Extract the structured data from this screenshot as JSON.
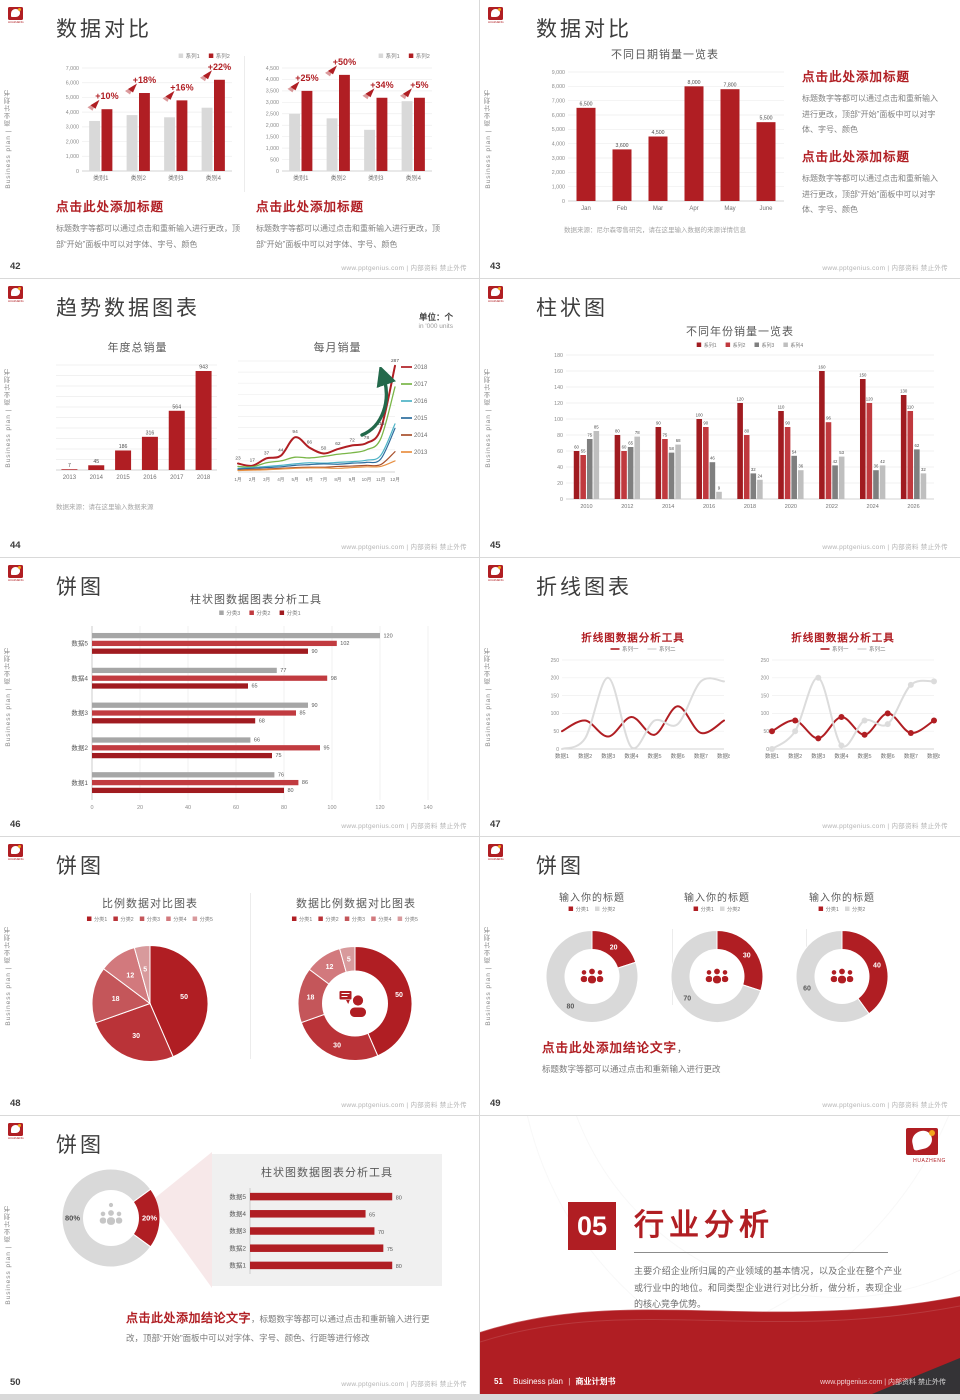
{
  "common": {
    "sidebar_text": "Business plan | 商业计划书",
    "footer_right": "www.pptgenius.com | 内部资料 禁止外传",
    "brand": {
      "logo_text": "HUAZHENG",
      "accent": "#b01e23"
    }
  },
  "slides": {
    "s42": {
      "page": "42",
      "title": "数据对比",
      "blocks": [
        {
          "heading": "点击此处添加标题",
          "body": "标题数字等都可以通过点击和重新输入进行更改，顶部“开始”面板中可以对字体、字号、颜色"
        },
        {
          "heading": "点击此处添加标题",
          "body": "标题数字等都可以通过点击和重新输入进行更改，顶部“开始”面板中可以对字体、字号、颜色"
        }
      ]
    },
    "s43": {
      "page": "43",
      "title": "数据对比",
      "source": "数据来源：尼尔森零售研究，请在这里输入数据的来源详情信息",
      "blocks": [
        {
          "heading": "点击此处添加标题",
          "body": "标题数字等都可以通过点击和重新输入进行更改，顶部“开始”面板中可以对字体、字号、颜色"
        },
        {
          "heading": "点击此处添加标题",
          "body": "标题数字等都可以通过点击和重新输入进行更改，顶部“开始”面板中可以对字体、字号、颜色"
        }
      ]
    },
    "s44": {
      "page": "44",
      "title": "趋势数据图表",
      "unit_line1": "单位：个",
      "unit_line2": "in '000 units",
      "source": "数据来源：请在这里输入数据来源"
    },
    "s45": {
      "page": "45",
      "title": "柱状图"
    },
    "s46": {
      "page": "46",
      "title": "饼图"
    },
    "s47": {
      "page": "47",
      "title": "折线图表"
    },
    "s48": {
      "page": "48",
      "title": "饼图"
    },
    "s49": {
      "page": "49",
      "title": "饼图",
      "conclusion_heading": "点击此处添加结论文字",
      "conclusion_comma": "，",
      "conclusion_body": "标题数字等都可以通过点击和重新输入进行更改"
    },
    "s50": {
      "page": "50",
      "title": "饼图",
      "conclusion_heading": "点击此处添加结论文字",
      "conclusion_body": "，标题数字等都可以通过点击和重新输入进行更改，顶部“开始”面板中可以对字体、字号、颜色、行距等进行修改"
    },
    "s51": {
      "page": "51",
      "number": "05",
      "title": "行业分析",
      "body": "主要介绍企业所归属的产业领域的基本情况，以及企业在整个产业或行业中的地位。和同类型企业进行对比分析，做分析，表现企业的核心竞争优势。",
      "footer_brand": "Business plan",
      "footer_sep": "|",
      "footer_book": "商业计划书"
    }
  },
  "chart_data": [
    {
      "target": "c42a",
      "type": "bar",
      "title": "",
      "categories": [
        "类别1",
        "类别2",
        "类别3",
        "类别4"
      ],
      "ylim": [
        0,
        7000
      ],
      "ystep": 1000,
      "fmt": "comma",
      "series": [
        {
          "name": "系列1",
          "color": "#d9d9d9",
          "values": [
            3400,
            3800,
            3650,
            4300
          ]
        },
        {
          "name": "系列2",
          "color": "#b01e23",
          "values": [
            4200,
            5300,
            4800,
            6200
          ]
        }
      ],
      "annotations": [
        "+10%",
        "+18%",
        "+16%",
        "+22%"
      ]
    },
    {
      "target": "c42b",
      "type": "bar",
      "title": "",
      "categories": [
        "类别1",
        "类别2",
        "类别3",
        "类别4"
      ],
      "ylim": [
        0,
        4500
      ],
      "ystep": 500,
      "fmt": "comma",
      "series": [
        {
          "name": "系列1",
          "color": "#d9d9d9",
          "values": [
            2500,
            2300,
            1800,
            3050
          ]
        },
        {
          "name": "系列2",
          "color": "#b01e23",
          "values": [
            3500,
            4200,
            3200,
            3200
          ]
        }
      ],
      "annotations": [
        "+25%",
        "+50%",
        "+34%",
        "+5%"
      ]
    },
    {
      "target": "c43",
      "type": "bar",
      "title": "不同日期销量一览表",
      "categories": [
        "Jan",
        "Feb",
        "Mar",
        "Apr",
        "May",
        "June"
      ],
      "ylim": [
        0,
        9000
      ],
      "ystep": 1000,
      "fmt": "comma",
      "series": [
        {
          "name": "销量",
          "color": "#b01e23",
          "values": [
            6500,
            3600,
            4500,
            8000,
            7800,
            5500
          ],
          "labels": true
        }
      ]
    },
    {
      "target": "c44a",
      "type": "bar",
      "title": "年度总销量",
      "categories": [
        "2013",
        "2014",
        "2015",
        "2016",
        "2017",
        "2018"
      ],
      "ylim": [
        0,
        1000
      ],
      "ystep": 100,
      "series": [
        {
          "name": "年度总销量",
          "color": "#b01e23",
          "values": [
            7,
            45,
            186,
            316,
            564,
            943
          ],
          "labels": true
        }
      ]
    },
    {
      "target": "c44b",
      "type": "line",
      "title": "每月销量",
      "categories": [
        "1月",
        "2月",
        "3月",
        "4月",
        "5月",
        "6月",
        "7月",
        "8月",
        "9月",
        "10月",
        "11月",
        "12月"
      ],
      "ylim": [
        0,
        300
      ],
      "ystep": 30,
      "series": [
        {
          "name": "2018",
          "color": "#b01e23",
          "values": [
            23,
            17,
            37,
            44,
            94,
            66,
            50,
            62,
            72,
            78,
            116,
            287
          ],
          "labels": true
        },
        {
          "name": "2017",
          "color": "#7ab648",
          "values": [
            15,
            14,
            25,
            30,
            40,
            38,
            42,
            48,
            52,
            60,
            90,
            230
          ]
        },
        {
          "name": "2016",
          "color": "#4db3c6",
          "values": [
            10,
            12,
            15,
            18,
            22,
            25,
            24,
            26,
            28,
            32,
            45,
            130
          ]
        },
        {
          "name": "2015",
          "color": "#2d6d9e",
          "values": [
            8,
            10,
            12,
            14,
            18,
            20,
            22,
            21,
            24,
            26,
            35,
            118
          ]
        },
        {
          "name": "2014",
          "color": "#a8502c",
          "values": [
            5,
            7,
            8,
            10,
            12,
            13,
            13,
            15,
            16,
            18,
            20,
            55
          ]
        },
        {
          "name": "2013",
          "color": "#e89042",
          "values": [
            4,
            5,
            6,
            8,
            10,
            11,
            11,
            10,
            12,
            14,
            15,
            30
          ]
        }
      ]
    },
    {
      "target": "c45",
      "type": "bar",
      "title": "不同年份销量一览表",
      "categories": [
        "2010",
        "2012",
        "2014",
        "2016",
        "2018",
        "2020",
        "2022",
        "2024",
        "2026"
      ],
      "ylim": [
        0,
        180
      ],
      "ystep": 20,
      "series": [
        {
          "name": "系列1",
          "color": "#a01b20",
          "values": [
            60,
            80,
            90,
            100,
            120,
            110,
            160,
            150,
            130
          ],
          "labels": true
        },
        {
          "name": "系列2",
          "color": "#c0393e",
          "values": [
            55,
            60,
            75,
            90,
            80,
            90,
            96,
            120,
            110
          ],
          "labels": true
        },
        {
          "name": "系列3",
          "color": "#7f7f7f",
          "values": [
            75,
            65,
            58,
            46,
            32,
            54,
            42,
            36,
            62
          ],
          "labels": true
        },
        {
          "name": "系列4",
          "color": "#bfbfbf",
          "values": [
            85,
            78,
            68,
            9,
            24,
            36,
            53,
            42,
            32
          ],
          "labels": true
        }
      ]
    },
    {
      "target": "c46",
      "type": "hbar",
      "title": "柱状图数据图表分析工具",
      "categories": [
        "数据1",
        "数据2",
        "数据3",
        "数据4",
        "数据5"
      ],
      "xlim": [
        0,
        140
      ],
      "xstep": 20,
      "series": [
        {
          "name": "分类3",
          "color": "#a6a6a6",
          "values": [
            76,
            66,
            90,
            77,
            120
          ]
        },
        {
          "name": "分类2",
          "color": "#c13b40",
          "values": [
            86,
            95,
            85,
            98,
            102
          ]
        },
        {
          "name": "分类1",
          "color": "#a01b20",
          "values": [
            80,
            75,
            68,
            65,
            90
          ]
        }
      ]
    },
    {
      "target": "c47a",
      "type": "line",
      "title": "折线图数据分析工具",
      "categories": [
        "数据1",
        "数据2",
        "数据3",
        "数据4",
        "数据5",
        "数据6",
        "数据7",
        "数据8"
      ],
      "ylim": [
        0,
        250
      ],
      "ystep": 50,
      "series": [
        {
          "name": "系列一",
          "color": "#b01e23",
          "values": [
            50,
            80,
            35,
            90,
            40,
            120,
            45,
            80
          ]
        },
        {
          "name": "系列二",
          "color": "#dcdcdc",
          "values": [
            0,
            30,
            200,
            5,
            80,
            70,
            190,
            190
          ]
        }
      ]
    },
    {
      "target": "c47b",
      "type": "line",
      "title": "折线图数据分析工具",
      "categories": [
        "数据1",
        "数据2",
        "数据3",
        "数据4",
        "数据5",
        "数据6",
        "数据7",
        "数据8"
      ],
      "ylim": [
        0,
        250
      ],
      "ystep": 50,
      "series": [
        {
          "name": "系列一",
          "color": "#b01e23",
          "values": [
            50,
            80,
            30,
            90,
            40,
            100,
            45,
            80
          ]
        },
        {
          "name": "系列二",
          "color": "#dcdcdc",
          "values": [
            0,
            50,
            200,
            10,
            80,
            70,
            180,
            190
          ]
        }
      ]
    },
    {
      "target": "c48a",
      "type": "pie",
      "title": "比例数据对比图表",
      "legend": [
        "分类1",
        "分类2",
        "分类3",
        "分类4",
        "分类5"
      ],
      "values": [
        50,
        30,
        18,
        12,
        5
      ],
      "colors": [
        "#b01e23",
        "#ba3338",
        "#c4565a",
        "#d2797d",
        "#d89a9c"
      ]
    },
    {
      "target": "c48b",
      "type": "pie",
      "title": "数据比例数据对比图表",
      "legend": [
        "分类1",
        "分类2",
        "分类3",
        "分类4",
        "分类5"
      ],
      "values": [
        50,
        30,
        18,
        12,
        5
      ],
      "colors": [
        "#b01e23",
        "#ba3338",
        "#c4565a",
        "#d2797d",
        "#d89a9c"
      ]
    },
    {
      "target": "c49a",
      "type": "pie",
      "title": "输入你的标题",
      "legend": [
        "分类1",
        "分类2"
      ],
      "values": [
        20,
        80
      ],
      "colors": [
        "#b01e23",
        "#d9d9d9"
      ]
    },
    {
      "target": "c49b",
      "type": "pie",
      "title": "输入你的标题",
      "legend": [
        "分类1",
        "分类2"
      ],
      "values": [
        30,
        70
      ],
      "colors": [
        "#b01e23",
        "#d9d9d9"
      ]
    },
    {
      "target": "c49c",
      "type": "pie",
      "title": "输入你的标题",
      "legend": [
        "分类1",
        "分类2"
      ],
      "values": [
        40,
        60
      ],
      "colors": [
        "#b01e23",
        "#d9d9d9"
      ]
    },
    {
      "target": "c50a",
      "type": "pie",
      "title": "",
      "values": [
        20,
        80
      ],
      "labels": [
        "20%",
        "80%"
      ],
      "colors": [
        "#b01e23",
        "#d9d9d9"
      ]
    },
    {
      "target": "c50b",
      "type": "hbar",
      "title": "柱状图数据图表分析工具",
      "categories": [
        "数据1",
        "数据2",
        "数据3",
        "数据4",
        "数据5"
      ],
      "xlim": [
        0,
        90
      ],
      "series": [
        {
          "name": "数据",
          "color": "#b01e23",
          "values": [
            80,
            75,
            70,
            65,
            80
          ]
        }
      ]
    }
  ]
}
